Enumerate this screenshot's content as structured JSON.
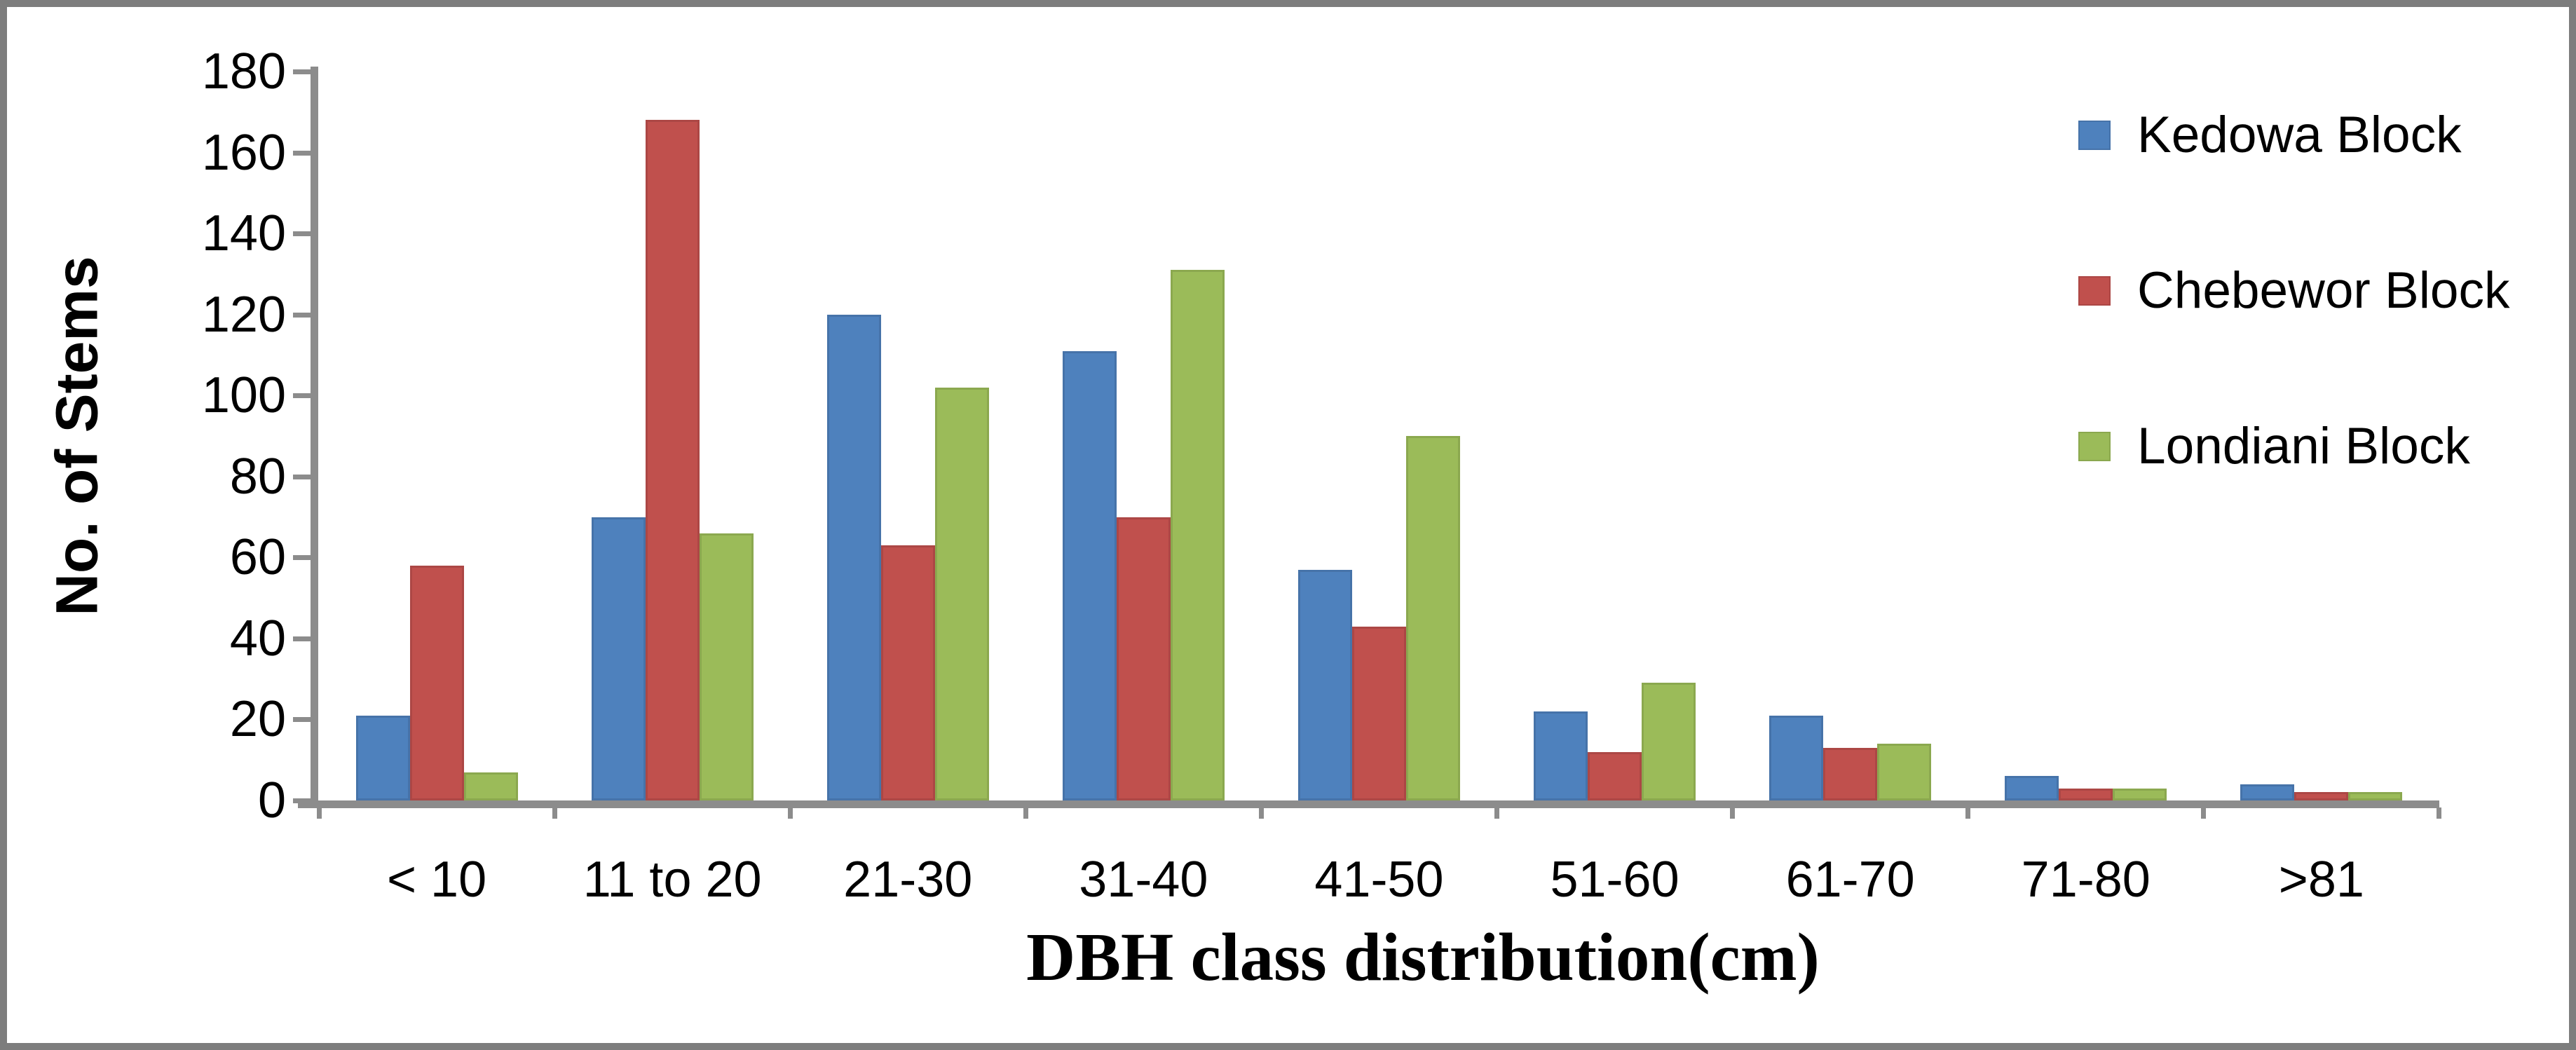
{
  "chart_data": {
    "type": "bar",
    "title": "",
    "xlabel": "DBH class distribution(cm)",
    "ylabel": "No. of Stems",
    "ylim": [
      0,
      180
    ],
    "ytick_step": 20,
    "yticks": [
      0,
      20,
      40,
      60,
      80,
      100,
      120,
      140,
      160,
      180
    ],
    "categories": [
      "< 10",
      "11 to 20",
      "21-30",
      "31-40",
      "41-50",
      "51-60",
      "61-70",
      "71-80",
      ">81"
    ],
    "series": [
      {
        "name": "Kedowa Block",
        "color": "#4E81BD",
        "values": [
          21,
          70,
          120,
          111,
          57,
          22,
          21,
          6,
          4
        ]
      },
      {
        "name": "Chebewor Block",
        "color": "#C0504D",
        "values": [
          58,
          168,
          63,
          70,
          43,
          12,
          13,
          3,
          2
        ]
      },
      {
        "name": "Londiani Block",
        "color": "#9BBB59",
        "values": [
          7,
          66,
          102,
          131,
          90,
          29,
          14,
          3,
          2
        ]
      }
    ],
    "legend_position": "top-right",
    "grid": false,
    "axis_color": "#8c8c8c"
  }
}
